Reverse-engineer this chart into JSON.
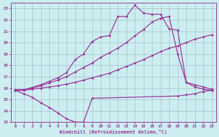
{
  "xlabel": "Windchill (Refroidissement éolien,°C)",
  "bg_color": "#cceef0",
  "grid_color": "#aabbcc",
  "line_color": "#993399",
  "xlim": [
    -0.5,
    23.5
  ],
  "ylim": [
    13,
    23.5
  ],
  "xticks": [
    0,
    1,
    2,
    3,
    4,
    5,
    6,
    7,
    8,
    9,
    10,
    11,
    12,
    13,
    14,
    15,
    16,
    17,
    18,
    19,
    20,
    21,
    22,
    23
  ],
  "yticks": [
    13,
    14,
    15,
    16,
    17,
    18,
    19,
    20,
    21,
    22,
    23
  ],
  "line1_x": [
    0,
    1,
    2,
    3,
    4,
    5,
    6,
    7,
    8,
    9,
    19,
    20,
    21,
    22,
    23
  ],
  "line1_y": [
    15.8,
    15.5,
    15.2,
    14.7,
    14.3,
    13.8,
    13.3,
    13.0,
    13.0,
    15.1,
    15.3,
    15.4,
    15.5,
    15.7,
    15.8
  ],
  "line2_x": [
    0,
    1,
    2,
    3,
    4,
    5,
    6,
    7,
    8,
    9,
    10,
    11,
    12,
    13,
    14,
    15,
    16,
    17,
    18,
    19,
    20,
    21,
    22,
    23
  ],
  "line2_y": [
    15.8,
    15.8,
    15.9,
    16.0,
    16.1,
    16.2,
    16.35,
    16.5,
    16.7,
    16.9,
    17.1,
    17.3,
    17.6,
    17.9,
    18.2,
    18.5,
    18.85,
    19.2,
    19.5,
    19.7,
    20.0,
    20.3,
    20.5,
    20.7
  ],
  "line3_x": [
    0,
    1,
    2,
    3,
    4,
    5,
    6,
    7,
    8,
    9,
    10,
    11,
    12,
    13,
    14,
    15,
    16,
    17,
    18,
    19,
    20,
    21,
    22,
    23
  ],
  "line3_y": [
    15.85,
    15.85,
    16.0,
    16.2,
    16.45,
    16.7,
    17.0,
    17.4,
    17.8,
    18.2,
    18.7,
    19.1,
    19.5,
    20.0,
    20.6,
    21.15,
    21.8,
    22.15,
    22.3,
    19.0,
    16.5,
    16.3,
    16.1,
    15.9
  ],
  "line4_x": [
    0,
    1,
    2,
    3,
    4,
    5,
    6,
    7,
    8,
    9,
    10,
    11,
    12,
    13,
    14,
    15,
    16,
    17,
    18,
    19,
    20,
    21,
    22,
    23
  ],
  "line4_y": [
    15.85,
    15.85,
    16.05,
    16.3,
    16.6,
    16.9,
    17.35,
    18.5,
    19.0,
    20.1,
    20.5,
    20.6,
    22.3,
    22.3,
    23.3,
    22.6,
    22.5,
    22.5,
    21.2,
    21.1,
    16.5,
    16.1,
    15.9,
    15.8
  ]
}
